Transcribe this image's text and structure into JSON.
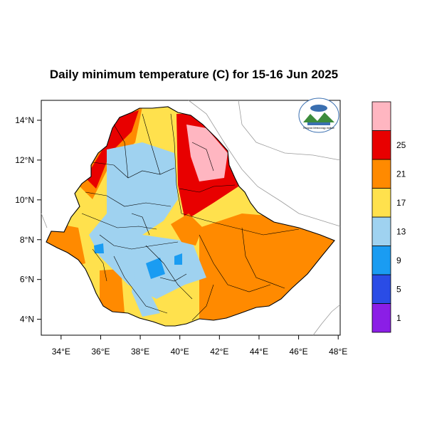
{
  "title": "Daily minimum temperature (C) for 15-16 Jun 2025",
  "x_ticks": [
    "34°E",
    "36°E",
    "38°E",
    "40°E",
    "42°E",
    "44°E",
    "46°E",
    "48°E"
  ],
  "y_ticks": [
    "4°N",
    "6°N",
    "8°N",
    "10°N",
    "12°N",
    "14°N"
  ],
  "legend": {
    "boundaries": [
      "1",
      "5",
      "9",
      "13",
      "17",
      "21",
      "25"
    ],
    "colors": [
      "#8b1ee6",
      "#2a4ce6",
      "#1a9cf2",
      "#9fd2f0",
      "#ffe14d",
      "#ff8a00",
      "#e80000",
      "#ffb6c1"
    ]
  },
  "logo": {
    "icon": "ethiopian-meteorology-institute-logo",
    "text": "Ethiopian Meteorology Institute"
  },
  "map_colors": {
    "very_hot": "#ffb6c1",
    "hot": "#e80000",
    "warm": "#ff8a00",
    "mild": "#ffe14d",
    "cool": "#9fd2f0",
    "cold": "#1a9cf2"
  }
}
